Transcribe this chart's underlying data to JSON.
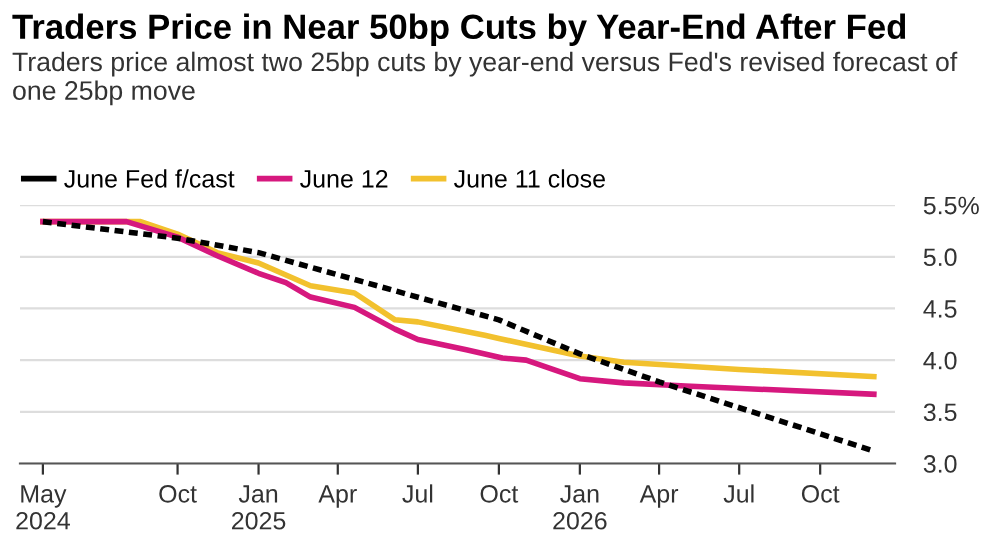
{
  "chart_data": {
    "type": "line",
    "title": "Traders Price in Near 50bp Cuts by Year-End After Fed",
    "subtitle": "Traders price almost two 25bp cuts by year-end versus Fed's revised forecast of one 25bp move",
    "series": [
      {
        "name": "June Fed f/cast",
        "color": "#000000",
        "line_style": "dashed",
        "x": [
          "2024-05-01",
          "2024-10-01",
          "2025-01-01",
          "2025-10-01",
          "2026-01-01",
          "2026-04-01",
          "2026-12-01"
        ],
        "values": [
          5.34,
          5.18,
          5.04,
          4.39,
          4.06,
          3.79,
          3.12
        ]
      },
      {
        "name": "June 12",
        "color": "#d6187e",
        "x": [
          "2024-05-01",
          "2024-08-04",
          "2024-10-01",
          "2024-11-15",
          "2025-01-01",
          "2025-02-01",
          "2025-03-01",
          "2025-04-20",
          "2025-06-05",
          "2025-07-01",
          "2025-08-25",
          "2025-10-05",
          "2025-11-01",
          "2026-01-01",
          "2026-02-20",
          "2026-05-01",
          "2026-12-01"
        ],
        "values": [
          5.34,
          5.34,
          5.19,
          5.01,
          4.84,
          4.75,
          4.61,
          4.51,
          4.3,
          4.2,
          4.1,
          4.02,
          4.0,
          3.82,
          3.78,
          3.75,
          3.67
        ]
      },
      {
        "name": "June 11 close",
        "color": "#f2c12e",
        "x": [
          "2024-05-01",
          "2024-08-20",
          "2024-10-01",
          "2024-11-15",
          "2025-01-01",
          "2025-03-01",
          "2025-04-20",
          "2025-06-05",
          "2025-07-01",
          "2025-09-15",
          "2025-10-01",
          "2026-01-01",
          "2026-02-20",
          "2026-07-01",
          "2026-12-01"
        ],
        "values": [
          5.34,
          5.34,
          5.22,
          5.04,
          4.94,
          4.72,
          4.65,
          4.39,
          4.37,
          4.24,
          4.21,
          4.04,
          3.98,
          3.91,
          3.84
        ]
      }
    ],
    "xlim": [
      "2024-04-05",
      "2026-12-25"
    ],
    "xticks": [
      {
        "value": "2024-05-01",
        "label": "May\n2024"
      },
      {
        "value": "2024-10-01",
        "label": "Oct"
      },
      {
        "value": "2025-01-01",
        "label": "Jan\n2025"
      },
      {
        "value": "2025-04-01",
        "label": "Apr"
      },
      {
        "value": "2025-07-01",
        "label": "Jul"
      },
      {
        "value": "2025-10-01",
        "label": "Oct"
      },
      {
        "value": "2026-01-01",
        "label": "Jan\n2026"
      },
      {
        "value": "2026-04-01",
        "label": "Apr"
      },
      {
        "value": "2026-07-01",
        "label": "Jul"
      },
      {
        "value": "2026-10-01",
        "label": "Oct"
      }
    ],
    "ylim": [
      3.0,
      5.5
    ],
    "yticks": [
      {
        "value": 3.0,
        "label": "3.0"
      },
      {
        "value": 3.5,
        "label": "3.5"
      },
      {
        "value": 4.0,
        "label": "4.0"
      },
      {
        "value": 4.5,
        "label": "4.5"
      },
      {
        "value": 5.0,
        "label": "5.0"
      },
      {
        "value": 5.5,
        "label": "5.5%"
      }
    ],
    "grid": "y",
    "legend": "top left"
  }
}
